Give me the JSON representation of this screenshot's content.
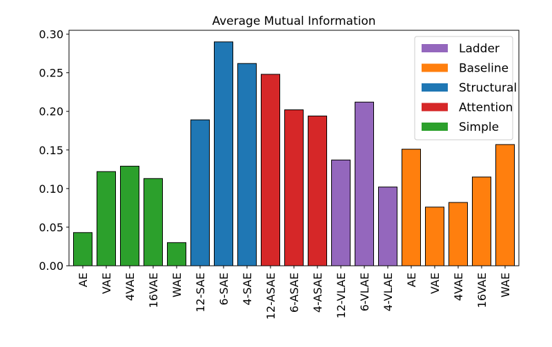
{
  "chart_data": {
    "type": "bar",
    "title": "Average Mutual Information",
    "xlabel": "",
    "ylabel": "",
    "ylim": [
      0,
      0.305
    ],
    "yticks": [
      "0.00",
      "0.05",
      "0.10",
      "0.15",
      "0.20",
      "0.25",
      "0.30"
    ],
    "grid": false,
    "legend_position": "top-right",
    "categories": [
      "AE",
      "VAE",
      "4VAE",
      "16VAE",
      "WAE",
      "12-SAE",
      "6-SAE",
      "4-SAE",
      "12-ASAE",
      "6-ASAE",
      "4-ASAE",
      "12-VLAE",
      "6-VLAE",
      "4-VLAE",
      "AE",
      "VAE",
      "4VAE",
      "16VAE",
      "WAE"
    ],
    "values": [
      0.043,
      0.122,
      0.129,
      0.113,
      0.03,
      0.189,
      0.29,
      0.262,
      0.248,
      0.202,
      0.194,
      0.137,
      0.212,
      0.102,
      0.151,
      0.076,
      0.082,
      0.115,
      0.157
    ],
    "groups": [
      "Simple",
      "Simple",
      "Simple",
      "Simple",
      "Simple",
      "Structural",
      "Structural",
      "Structural",
      "Attention",
      "Attention",
      "Attention",
      "Ladder",
      "Ladder",
      "Ladder",
      "Baseline",
      "Baseline",
      "Baseline",
      "Baseline",
      "Baseline"
    ],
    "legend": [
      {
        "name": "Ladder",
        "color": "#9467bd"
      },
      {
        "name": "Baseline",
        "color": "#ff7f0e"
      },
      {
        "name": "Structural",
        "color": "#1f77b4"
      },
      {
        "name": "Attention",
        "color": "#d62728"
      },
      {
        "name": "Simple",
        "color": "#2ca02c"
      }
    ]
  }
}
